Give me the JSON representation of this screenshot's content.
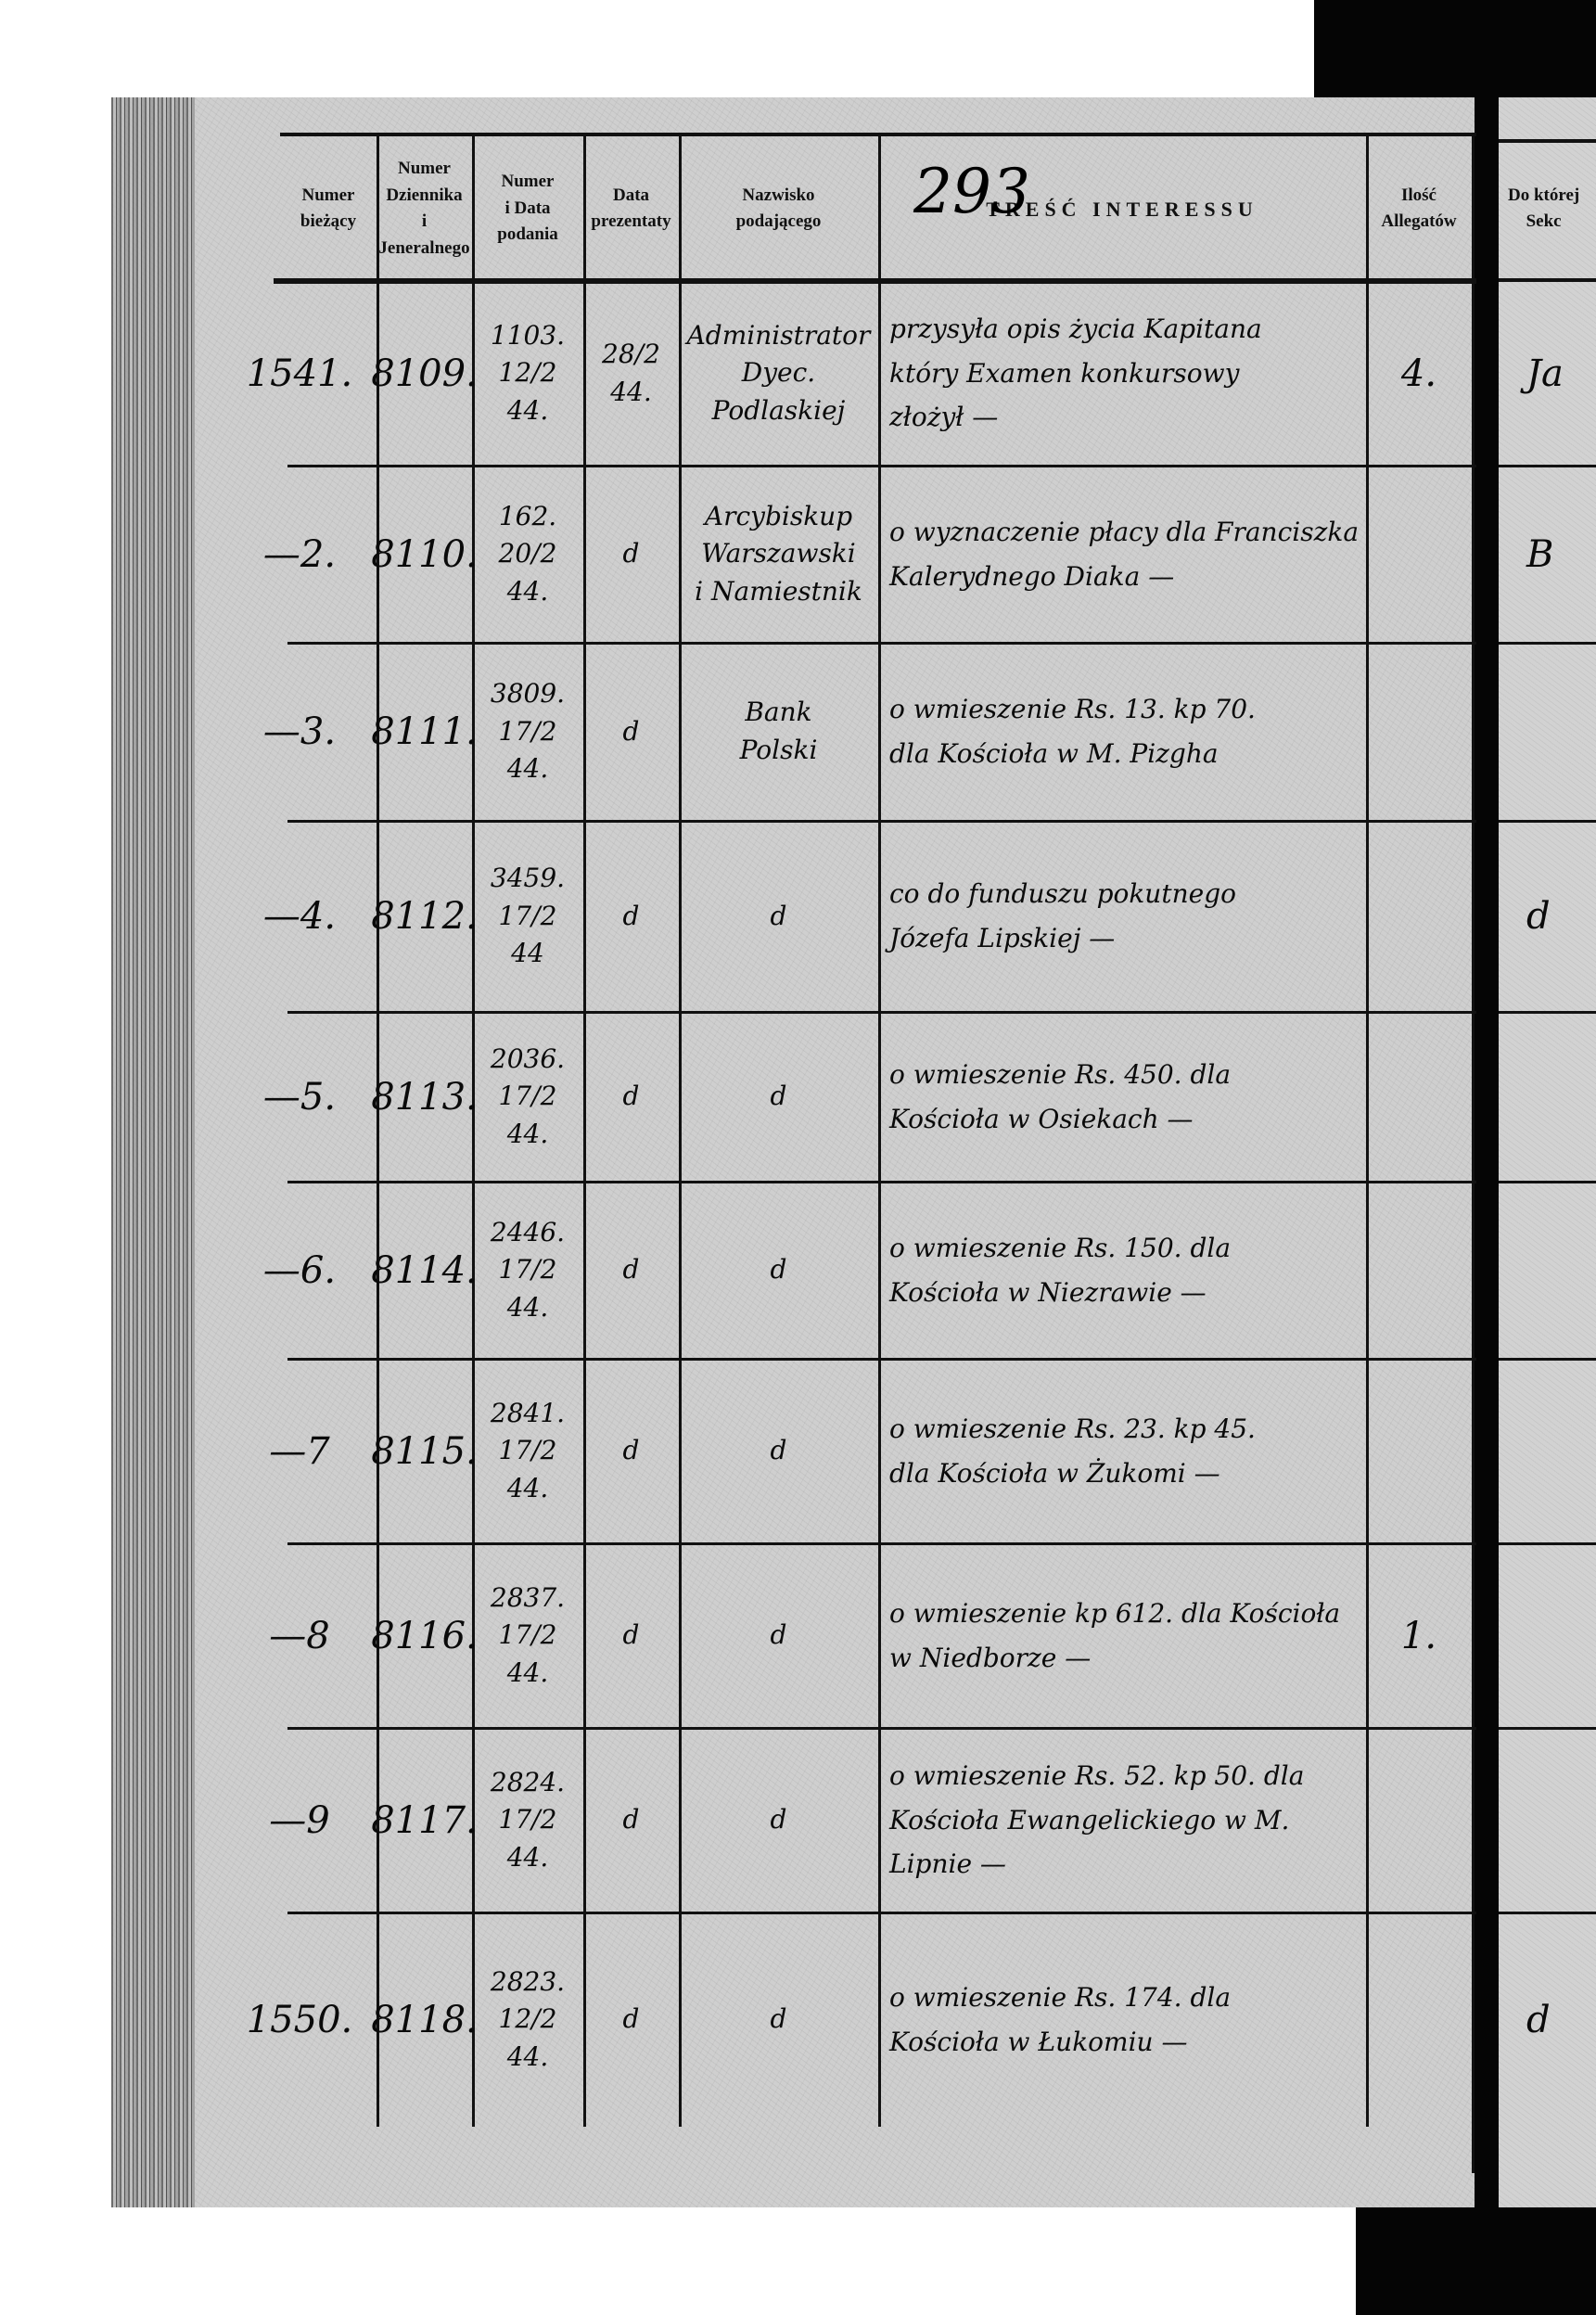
{
  "page_number": "293",
  "headers": [
    "Numer\nbieżący",
    "Numer\nDziennika\ni\nJeneralnego",
    "Numer\ni Data\npodania",
    "Data\nprezentaty",
    "Nazwisko\npodającego",
    "TREŚĆ INTERESSU",
    "Ilość\nAllegatów",
    "Do której\nSekc"
  ],
  "rows": [
    {
      "nr": "1541.",
      "dziennik": "8109.",
      "podanie": "1103.\n12/2\n44.",
      "prezentata": "28/2\n44.",
      "podajacy": "Administrator\nDyec.\nPodlaskiej",
      "tresc": "przysyła opis życia Kapitana\nktóry Examen konkursowy\nzłożył —",
      "allegaty": "4.",
      "sekcja": "Ja"
    },
    {
      "nr": "—2.",
      "dziennik": "8110.",
      "podanie": "162.\n20/2\n44.",
      "prezentata": "d",
      "podajacy": "Arcybiskup\nWarszawski\ni Namiestnik",
      "tresc": "o wyznaczenie płacy dla Franciszka\nKalerydnego Diaka —",
      "allegaty": "",
      "sekcja": "B"
    },
    {
      "nr": "—3.",
      "dziennik": "8111.",
      "podanie": "3809.\n17/2\n44.",
      "prezentata": "d",
      "podajacy": "Bank\nPolski",
      "tresc": "o wmieszenie Rs. 13. kp 70.\ndla Kościoła w M. Pizgha",
      "allegaty": "",
      "sekcja": ""
    },
    {
      "nr": "—4.",
      "dziennik": "8112.",
      "podanie": "3459.\n17/2\n44",
      "prezentata": "d",
      "podajacy": "d",
      "tresc": "co do funduszu pokutnego\nJózefa Lipskiej —",
      "allegaty": "",
      "sekcja": "d"
    },
    {
      "nr": "—5.",
      "dziennik": "8113.",
      "podanie": "2036.\n17/2\n44.",
      "prezentata": "d",
      "podajacy": "d",
      "tresc": "o wmieszenie Rs. 450. dla\nKościoła w Osiekach —",
      "allegaty": "",
      "sekcja": ""
    },
    {
      "nr": "—6.",
      "dziennik": "8114.",
      "podanie": "2446.\n17/2\n44.",
      "prezentata": "d",
      "podajacy": "d",
      "tresc": "o wmieszenie Rs. 150. dla\nKościoła w Niezrawie —",
      "allegaty": "",
      "sekcja": ""
    },
    {
      "nr": "—7",
      "dziennik": "8115.",
      "podanie": "2841.\n17/2\n44.",
      "prezentata": "d",
      "podajacy": "d",
      "tresc": "o wmieszenie Rs. 23. kp 45.\ndla Kościoła w Żukomi —",
      "allegaty": "",
      "sekcja": ""
    },
    {
      "nr": "—8",
      "dziennik": "8116.",
      "podanie": "2837.\n17/2\n44.",
      "prezentata": "d",
      "podajacy": "d",
      "tresc": "o wmieszenie kp 612. dla Kościoła\nw Niedborze —",
      "allegaty": "1.",
      "sekcja": ""
    },
    {
      "nr": "—9",
      "dziennik": "8117.",
      "podanie": "2824.\n17/2\n44.",
      "prezentata": "d",
      "podajacy": "d",
      "tresc": "o wmieszenie Rs. 52. kp 50. dla\nKościoła Ewangelickiego w M.\nLipnie —",
      "allegaty": "",
      "sekcja": ""
    },
    {
      "nr": "1550.",
      "dziennik": "8118.",
      "podanie": "2823.\n12/2\n44.",
      "prezentata": "d",
      "podajacy": "d",
      "tresc": "o wmieszenie Rs. 174. dla\nKościoła w Łukomiu —",
      "allegaty": "",
      "sekcja": "d"
    }
  ]
}
